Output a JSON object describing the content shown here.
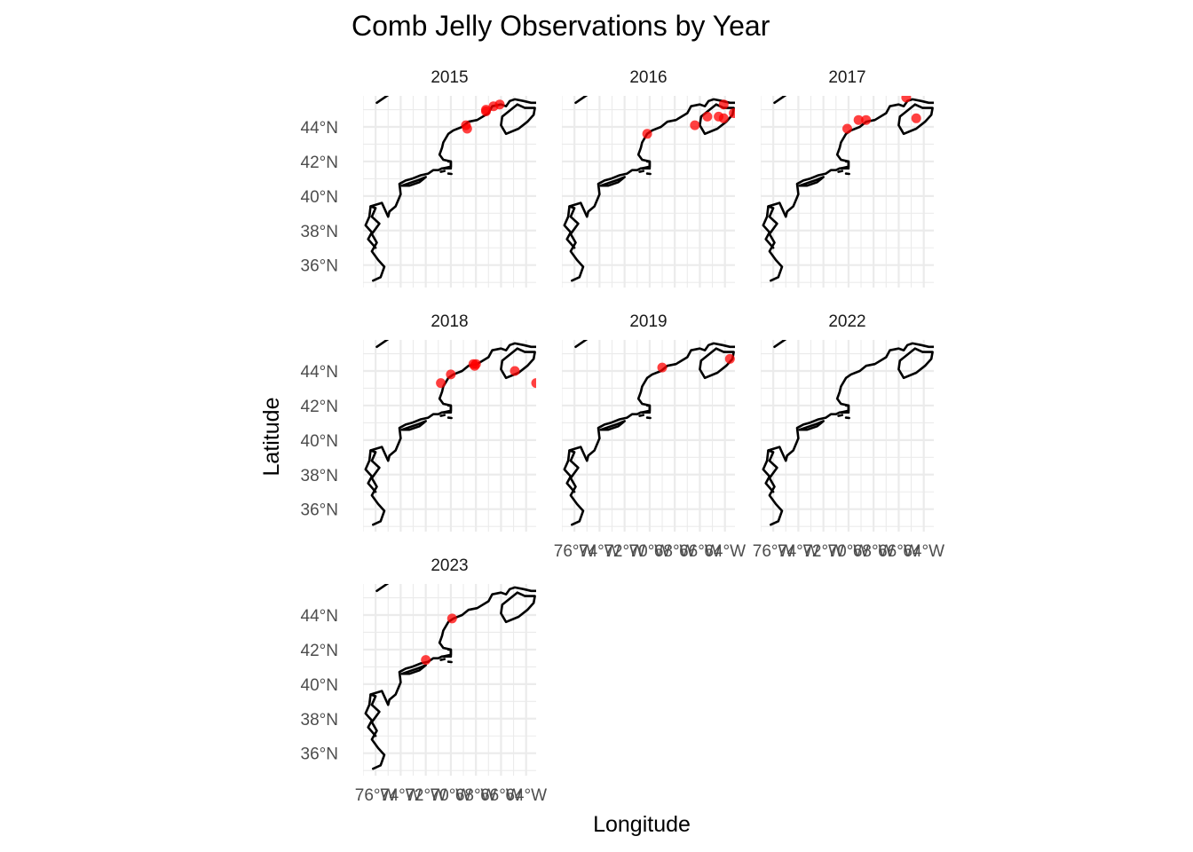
{
  "chart_data": {
    "type": "scatter",
    "title": "Comb Jelly Observations by Year",
    "xlabel": "Longitude",
    "ylabel": "Latitude",
    "xlim": [
      -77,
      -63.2
    ],
    "ylim": [
      34.7,
      45.8
    ],
    "x_ticks": [
      -76,
      -74,
      -72,
      -70,
      -68,
      -66,
      -64
    ],
    "x_tick_labels": [
      "76°W",
      "74°W",
      "72°W",
      "70°W",
      "68°W",
      "66°W",
      "64°W"
    ],
    "y_ticks": [
      36,
      38,
      40,
      42,
      44
    ],
    "y_tick_labels": [
      "36°N",
      "38°N",
      "40°N",
      "42°N",
      "44°N"
    ],
    "grid": true,
    "point_color": "#ff0000",
    "coast_color": "#000000",
    "facets": [
      {
        "label": "2015",
        "points": [
          {
            "lon": -68.8,
            "lat": 44.1
          },
          {
            "lon": -68.7,
            "lat": 43.9
          },
          {
            "lon": -67.2,
            "lat": 45.0
          },
          {
            "lon": -67.2,
            "lat": 44.9
          },
          {
            "lon": -66.6,
            "lat": 45.2
          },
          {
            "lon": -66.1,
            "lat": 45.3
          }
        ]
      },
      {
        "label": "2016",
        "points": [
          {
            "lon": -70.2,
            "lat": 43.6
          },
          {
            "lon": -66.4,
            "lat": 44.1
          },
          {
            "lon": -65.4,
            "lat": 44.6
          },
          {
            "lon": -64.5,
            "lat": 44.6
          },
          {
            "lon": -64.1,
            "lat": 44.5
          },
          {
            "lon": -64.1,
            "lat": 45.3
          },
          {
            "lon": -63.3,
            "lat": 44.8
          }
        ]
      },
      {
        "label": "2017",
        "points": [
          {
            "lon": -70.1,
            "lat": 43.9
          },
          {
            "lon": -69.2,
            "lat": 44.4
          },
          {
            "lon": -68.6,
            "lat": 44.4
          },
          {
            "lon": -65.4,
            "lat": 45.7
          },
          {
            "lon": -64.6,
            "lat": 44.5
          }
        ]
      },
      {
        "label": "2018",
        "points": [
          {
            "lon": -70.8,
            "lat": 43.3
          },
          {
            "lon": -70.0,
            "lat": 43.8
          },
          {
            "lon": -68.2,
            "lat": 44.4
          },
          {
            "lon": -68.0,
            "lat": 44.4
          },
          {
            "lon": -68.1,
            "lat": 44.3
          },
          {
            "lon": -64.9,
            "lat": 44.0
          },
          {
            "lon": -63.2,
            "lat": 43.3
          }
        ]
      },
      {
        "label": "2019",
        "points": [
          {
            "lon": -69.0,
            "lat": 44.2
          },
          {
            "lon": -63.6,
            "lat": 44.7
          }
        ]
      },
      {
        "label": "2022",
        "points": []
      },
      {
        "label": "2023",
        "points": [
          {
            "lon": -72.0,
            "lat": 41.4
          },
          {
            "lon": -69.9,
            "lat": 43.8
          }
        ]
      }
    ]
  }
}
